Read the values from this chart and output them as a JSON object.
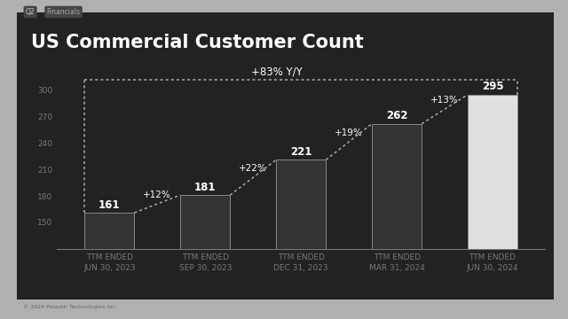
{
  "title": "US Commercial Customer Count",
  "categories": [
    "TTM ENDED\nJUN 30, 2023",
    "TTM ENDED\nSEP 30, 2023",
    "TTM ENDED\nDEC 31, 2023",
    "TTM ENDED\nMAR 31, 2024",
    "TTM ENDED\nJUN 30, 2024"
  ],
  "values": [
    161,
    181,
    221,
    262,
    295
  ],
  "bar_colors": [
    "#333333",
    "#333333",
    "#333333",
    "#333333",
    "#e0e0e0"
  ],
  "bar_edge_color": "#888888",
  "growth_labels": [
    "+12%",
    "+22%",
    "+19%",
    "+13%"
  ],
  "yoy_label": "+83% Y/Y",
  "ylim": [
    120,
    330
  ],
  "yticks": [
    150,
    180,
    210,
    240,
    270,
    300
  ],
  "panel_bg": "#222222",
  "outer_bg": "#b0b0b0",
  "text_color": "#ffffff",
  "axis_color": "#777777",
  "dotted_line_color": "#aaaaaa",
  "title_fontsize": 15,
  "label_fontsize": 6.5,
  "value_fontsize": 8.5,
  "growth_fontsize": 7.5,
  "yoy_fontsize": 8.5,
  "header_tag": "Q2",
  "header_label": "Financials",
  "copyright": "© 2024 Palantir Technologies Inc."
}
